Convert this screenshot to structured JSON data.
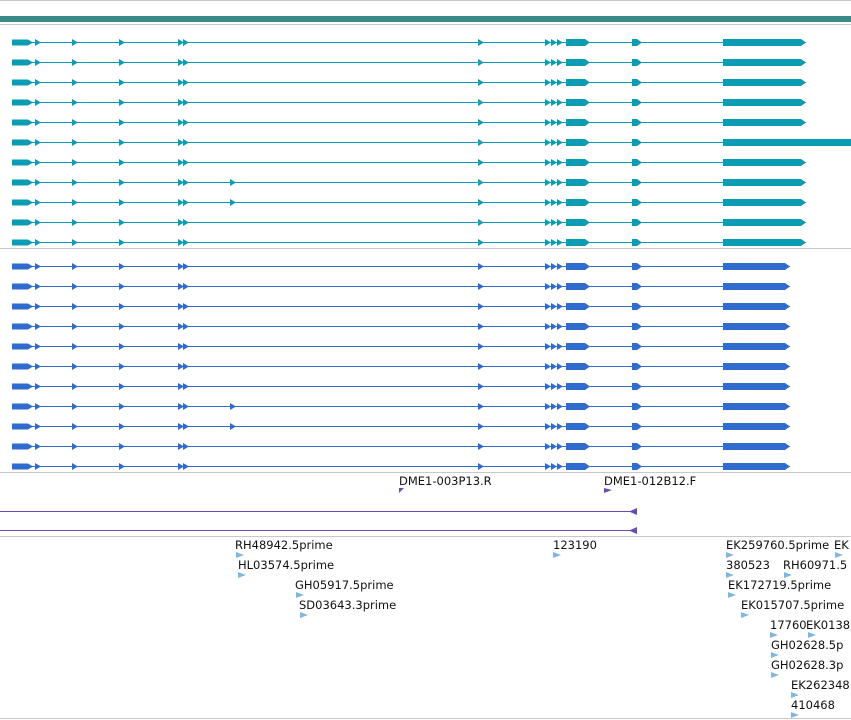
{
  "colors": {
    "top_bar": "#3a8a8c",
    "teal_track": "#0a9cb2",
    "blue_track": "#2f6ccd",
    "purple_track": "#6a4cb4",
    "est_marker": "#7fb8de",
    "divider": "#c8c8c8"
  },
  "transcripts_teal_count": 11,
  "transcripts_blue_count": 11,
  "primer_labels": [
    "DME1-003P13.R",
    "DME1-012B12.F"
  ],
  "est_labels": [
    "RH48942.5prime",
    "HL03574.5prime",
    "GH05917.5prime",
    "SD03643.3prime",
    "123190",
    "EK259760.5prime",
    "EK",
    "380523",
    "RH60971.5",
    "EK172719.5prime",
    "EK015707.5prime",
    "17760",
    "EK0138",
    "GH02628.5p",
    "GH02628.3p",
    "EK262348",
    "410468"
  ]
}
